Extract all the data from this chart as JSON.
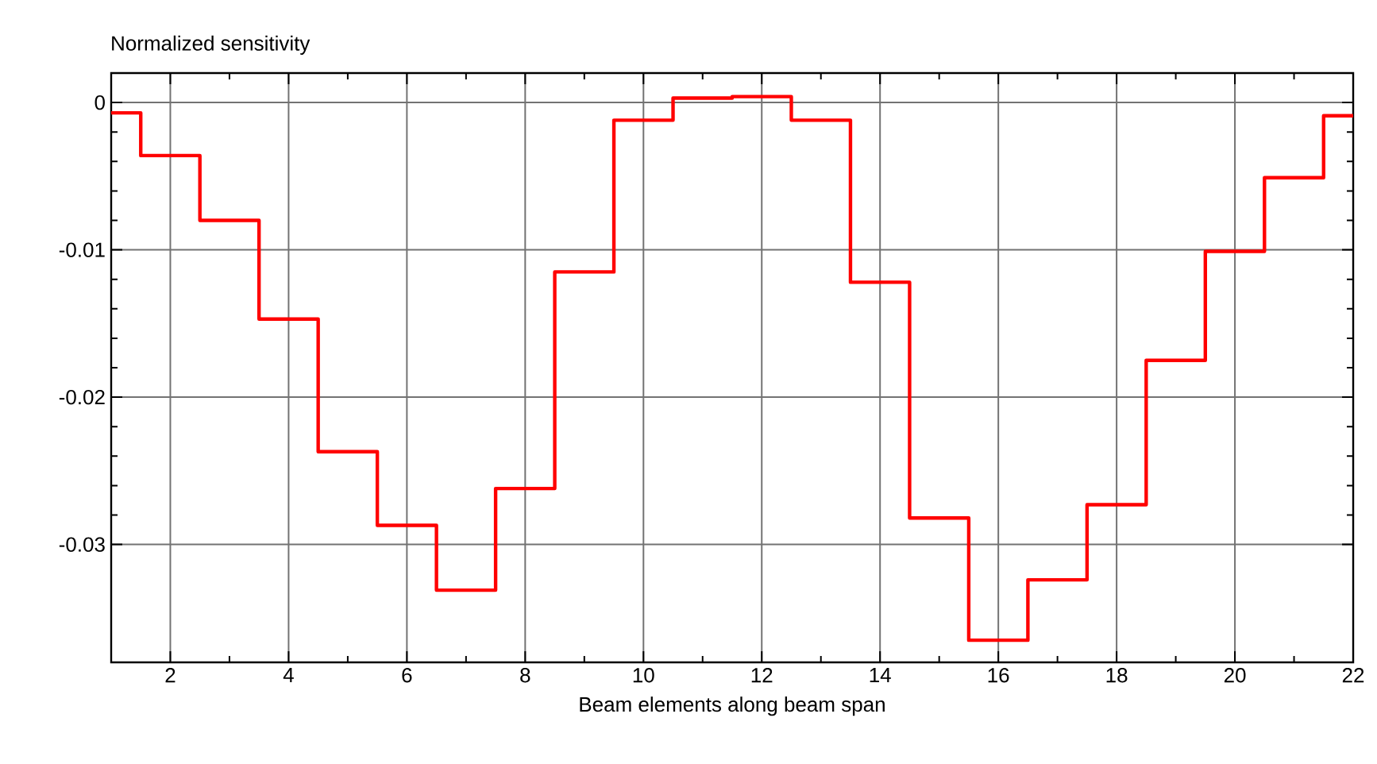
{
  "chart_data": {
    "type": "step",
    "ylabel": "Normalized sensitivity",
    "xlabel": "Beam elements along beam span",
    "x": [
      1,
      2,
      3,
      4,
      5,
      6,
      7,
      8,
      9,
      10,
      11,
      12,
      13,
      14,
      15,
      16,
      17,
      18,
      19,
      20,
      21,
      22
    ],
    "series": [
      {
        "color": "#ff0000",
        "values": [
          -0.0007,
          -0.0036,
          -0.008,
          -0.0147,
          -0.0237,
          -0.0287,
          -0.0331,
          -0.0262,
          -0.0115,
          -0.0012,
          0.0003,
          0.0004,
          -0.0012,
          -0.0122,
          -0.0282,
          -0.0365,
          -0.0324,
          -0.0273,
          -0.0175,
          -0.0101,
          -0.0051,
          -0.0009
        ]
      }
    ],
    "xlim": [
      1,
      22
    ],
    "ylim": [
      -0.038,
      0.002
    ],
    "xticks": [
      2,
      4,
      6,
      8,
      10,
      12,
      14,
      16,
      18,
      20,
      22
    ],
    "yticks": [
      0,
      -0.01,
      -0.02,
      -0.03
    ],
    "grid": true,
    "marker": "none",
    "line_style": "solid"
  }
}
